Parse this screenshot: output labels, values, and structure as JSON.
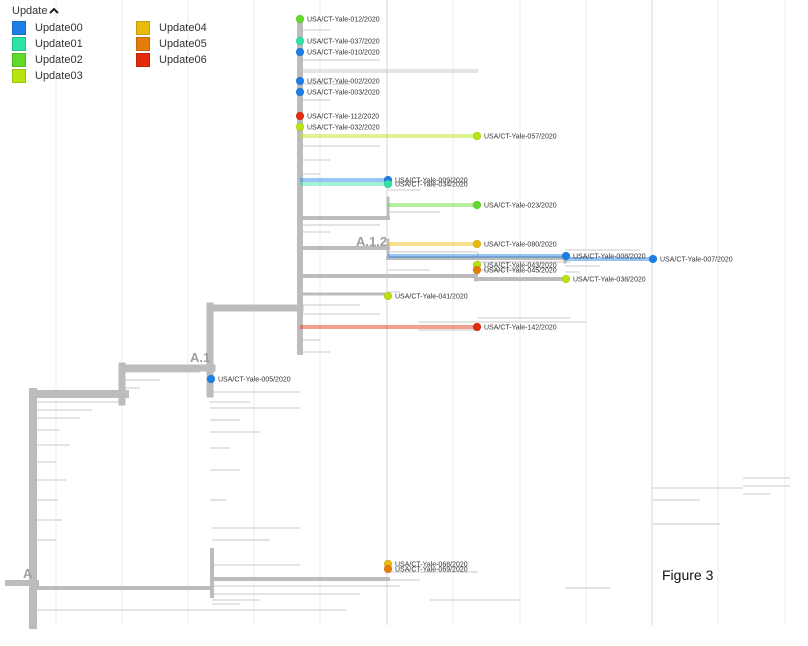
{
  "legend": {
    "title": "Update",
    "toggle_icon": "chevron-up-icon",
    "items": [
      {
        "label": "Update00",
        "color": "#1c7fe6"
      },
      {
        "label": "Update01",
        "color": "#2ee2a8"
      },
      {
        "label": "Update02",
        "color": "#5fd92a"
      },
      {
        "label": "Update03",
        "color": "#b7e40e"
      },
      {
        "label": "Update04",
        "color": "#e8bb0c"
      },
      {
        "label": "Update05",
        "color": "#e37d08"
      },
      {
        "label": "Update06",
        "color": "#e22a0c"
      }
    ]
  },
  "clade_labels": [
    "A",
    "A.1",
    "A.1.2"
  ],
  "tips": [
    {
      "label": "USA/CT-Yale-012/2020",
      "color": "#5fd92a"
    },
    {
      "label": "USA/CT-Yale-037/2020",
      "color": "#2ee2a8"
    },
    {
      "label": "USA/CT-Yale-010/2020",
      "color": "#1c7fe6"
    },
    {
      "label": "USA/CT-Yale-002/2020",
      "color": "#1c7fe6"
    },
    {
      "label": "USA/CT-Yale-003/2020",
      "color": "#1c7fe6"
    },
    {
      "label": "USA/CT-Yale-112/2020",
      "color": "#e22a0c"
    },
    {
      "label": "USA/CT-Yale-032/2020",
      "color": "#b7e40e"
    },
    {
      "label": "USA/CT-Yale-057/2020",
      "color": "#b7e40e"
    },
    {
      "label": "USA/CT-Yale-009/2020",
      "color": "#1c7fe6"
    },
    {
      "label": "USA/CT-Yale-034/2020",
      "color": "#2ee2a8"
    },
    {
      "label": "USA/CT-Yale-023/2020",
      "color": "#5fd92a"
    },
    {
      "label": "USA/CT-Yale-080/2020",
      "color": "#e8bb0c"
    },
    {
      "label": "USA/CT-Yale-008/2020",
      "color": "#1c7fe6"
    },
    {
      "label": "USA/CT-Yale-007/2020",
      "color": "#1c7fe6"
    },
    {
      "label": "USA/CT-Yale-043/2020",
      "color": "#b7e40e"
    },
    {
      "label": "USA/CT-Yale-045/2020",
      "color": "#e37d08"
    },
    {
      "label": "USA/CT-Yale-038/2020",
      "color": "#b7e40e"
    },
    {
      "label": "USA/CT-Yale-041/2020",
      "color": "#b7e40e"
    },
    {
      "label": "USA/CT-Yale-142/2020",
      "color": "#e22a0c"
    },
    {
      "label": "USA/CT-Yale-005/2020",
      "color": "#1c7fe6"
    },
    {
      "label": "USA/CT-Yale-068/2020",
      "color": "#e8bb0c"
    },
    {
      "label": "USA/CT-Yale-069/2020",
      "color": "#e37d08"
    }
  ],
  "figure_label": "Figure 3"
}
